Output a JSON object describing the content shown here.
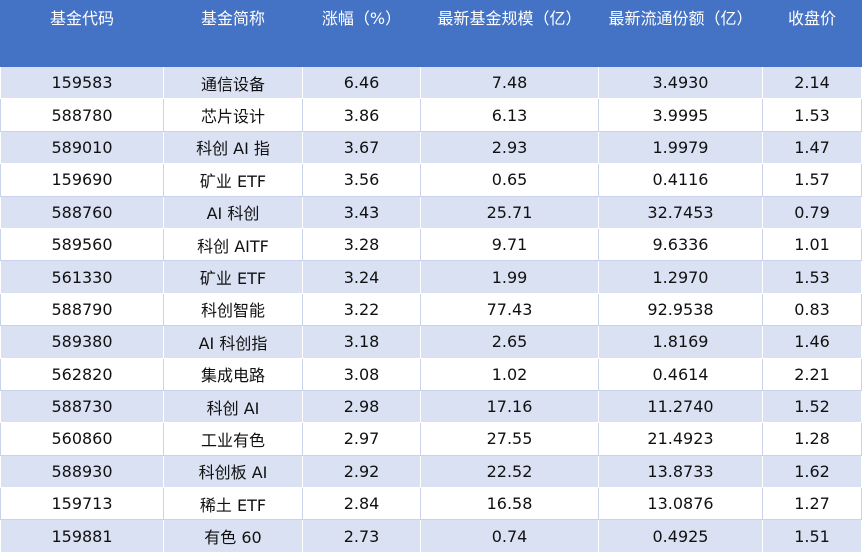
{
  "table": {
    "header": [
      "基金代码",
      "基金简称",
      "涨幅（%）",
      "最新基金规模（亿）",
      "最新流通份额（亿）",
      "收盘价"
    ],
    "rows": [
      [
        "159583",
        "通信设备",
        "6.46",
        "7.48",
        "3.4930",
        "2.14"
      ],
      [
        "588780",
        "芯片设计",
        "3.86",
        "6.13",
        "3.9995",
        "1.53"
      ],
      [
        "589010",
        "科创 AI 指",
        "3.67",
        "2.93",
        "1.9979",
        "1.47"
      ],
      [
        "159690",
        "矿业 ETF",
        "3.56",
        "0.65",
        "0.4116",
        "1.57"
      ],
      [
        "588760",
        "AI 科创",
        "3.43",
        "25.71",
        "32.7453",
        "0.79"
      ],
      [
        "589560",
        "科创 AITF",
        "3.28",
        "9.71",
        "9.6336",
        "1.01"
      ],
      [
        "561330",
        "矿业 ETF",
        "3.24",
        "1.99",
        "1.2970",
        "1.53"
      ],
      [
        "588790",
        "科创智能",
        "3.22",
        "77.43",
        "92.9538",
        "0.83"
      ],
      [
        "589380",
        "AI 科创指",
        "3.18",
        "2.65",
        "1.8169",
        "1.46"
      ],
      [
        "562820",
        "集成电路",
        "3.08",
        "1.02",
        "0.4614",
        "2.21"
      ],
      [
        "588730",
        "科创 AI",
        "2.98",
        "17.16",
        "11.2740",
        "1.52"
      ],
      [
        "560860",
        "工业有色",
        "2.97",
        "27.55",
        "21.4923",
        "1.28"
      ],
      [
        "588930",
        "科创板 AI",
        "2.92",
        "22.52",
        "13.8733",
        "1.62"
      ],
      [
        "159713",
        "稀土 ETF",
        "2.84",
        "16.58",
        "13.0876",
        "1.27"
      ],
      [
        "159881",
        "有色 60",
        "2.73",
        "0.74",
        "0.4925",
        "1.51"
      ]
    ]
  }
}
